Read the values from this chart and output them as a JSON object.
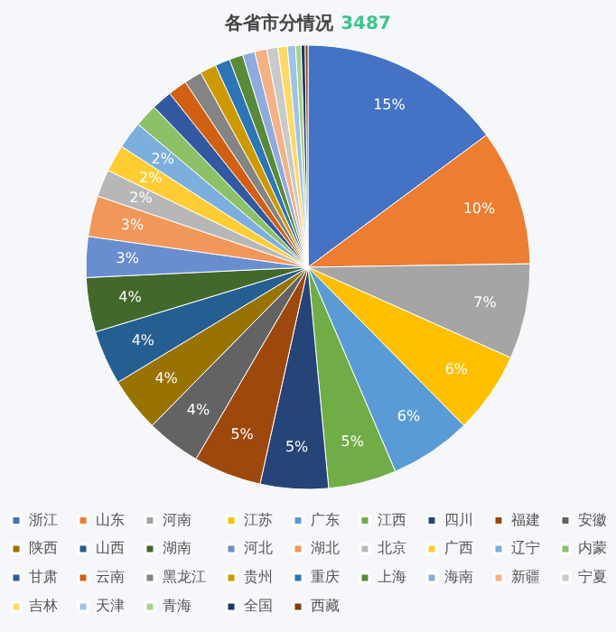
{
  "chart_data": {
    "type": "pie",
    "title": "各省市分情况",
    "subtitle": "3487",
    "categories": [
      "浙江",
      "山东",
      "河南",
      "江苏",
      "广东",
      "江西",
      "四川",
      "福建",
      "安徽",
      "陕西",
      "山西",
      "湖南",
      "河北",
      "湖北",
      "北京",
      "广西",
      "辽宁",
      "内蒙",
      "甘肃",
      "云南",
      "黑龙江",
      "贵州",
      "重庆",
      "上海",
      "海南",
      "新疆",
      "宁夏",
      "吉林",
      "天津",
      "青海",
      "全国",
      "西藏"
    ],
    "values": [
      15,
      10,
      7,
      6,
      6,
      5,
      5,
      5,
      4,
      4,
      4,
      4,
      3,
      3,
      2,
      2,
      2,
      1.7,
      1.5,
      1.4,
      1.3,
      1.2,
      1.1,
      1.0,
      0.9,
      0.9,
      0.8,
      0.7,
      0.6,
      0.4,
      0.3,
      0.2
    ],
    "value_labels": [
      "15%",
      "10%",
      "7%",
      "6%",
      "6%",
      "5%",
      "5%",
      "5%",
      "4%",
      "4%",
      "4%",
      "4%",
      "3%",
      "3%",
      "2%",
      "2%",
      "2%",
      null,
      null,
      null,
      null,
      null,
      null,
      null,
      null,
      null,
      null,
      null,
      null,
      null,
      null,
      null
    ],
    "colors": [
      "#4472c4",
      "#ed7d31",
      "#a5a5a5",
      "#ffc000",
      "#5b9bd5",
      "#70ad47",
      "#264478",
      "#9e480e",
      "#636363",
      "#997300",
      "#255e91",
      "#43682b",
      "#698ed0",
      "#f1975a",
      "#b7b7b7",
      "#ffcd33",
      "#7cafdd",
      "#8cc168",
      "#335aa1",
      "#d26012",
      "#848484",
      "#cc9a00",
      "#2e75b6",
      "#5a8a39",
      "#8faadc",
      "#f4b183",
      "#c9c9c9",
      "#ffd966",
      "#9dc3e6",
      "#a9d18e",
      "#203864",
      "#843c0c"
    ],
    "legend": "bottom"
  }
}
